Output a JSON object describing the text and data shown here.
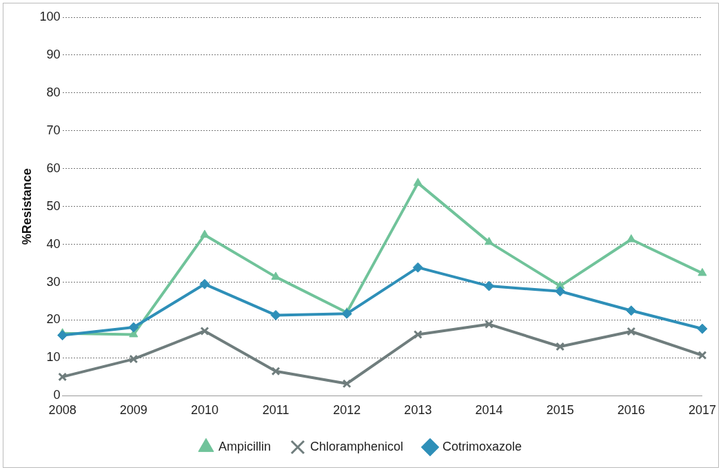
{
  "chart_data": {
    "type": "line",
    "ylabel": "%Resistance",
    "categories": [
      "2008",
      "2009",
      "2010",
      "2011",
      "2012",
      "2013",
      "2014",
      "2015",
      "2016",
      "2017"
    ],
    "series": [
      {
        "name": "Ampicillin",
        "color": "#70c39a",
        "marker": "triangle",
        "values": [
          16.5,
          16.2,
          42.5,
          31.4,
          22,
          56.2,
          40.6,
          29,
          41.3,
          32.4
        ]
      },
      {
        "name": "Chloramphenicol",
        "color": "#6f7d7d",
        "marker": "cross",
        "values": [
          5,
          9.7,
          17.1,
          6.5,
          3.2,
          16.2,
          18.9,
          13,
          17,
          10.7
        ]
      },
      {
        "name": "Cotrimoxazole",
        "color": "#2e8fb8",
        "marker": "diamond",
        "values": [
          16,
          18.1,
          29.5,
          21.3,
          21.7,
          33.9,
          29,
          27.6,
          22.5,
          17.7
        ]
      }
    ],
    "ylim": [
      0,
      100
    ],
    "yticks": [
      0,
      10,
      20,
      30,
      40,
      50,
      60,
      70,
      80,
      90,
      100
    ],
    "grid": "y",
    "legend": "bottom",
    "line_style": "solid"
  }
}
